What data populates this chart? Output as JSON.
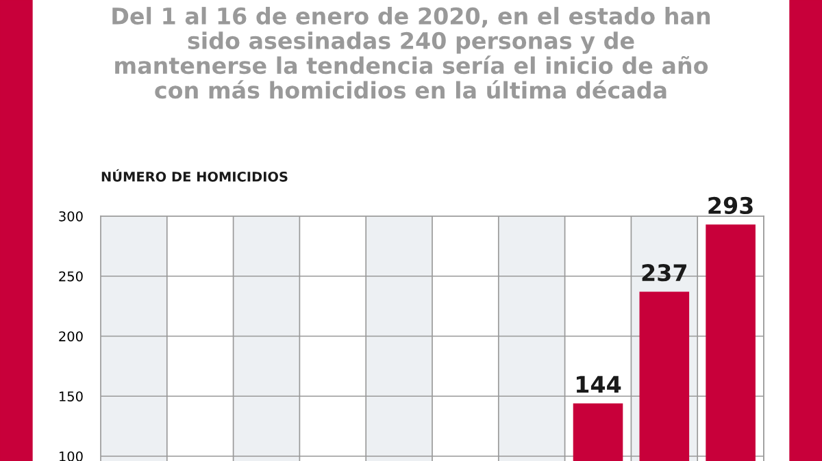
{
  "chart_data": {
    "type": "bar",
    "title": "Del 1 al 16 de enero de 2020, en el estado han\nsido asesinadas 240 personas y de\nmantenerse la tendencia sería el inicio de año\ncon más homicidios en la última década",
    "ylabel": "NÚMERO DE HOMICIDIOS",
    "categories": [
      null,
      null,
      null,
      null,
      null,
      null,
      null,
      null,
      null,
      null
    ],
    "values": [
      null,
      null,
      null,
      null,
      null,
      null,
      null,
      144,
      237,
      293
    ],
    "value_labels": [
      null,
      null,
      null,
      null,
      null,
      null,
      null,
      "144",
      "237",
      "293"
    ],
    "color": "#c8003a",
    "ylim": [
      96,
      300
    ],
    "yticks": [
      100,
      150,
      200,
      250,
      300
    ],
    "grid": true
  }
}
